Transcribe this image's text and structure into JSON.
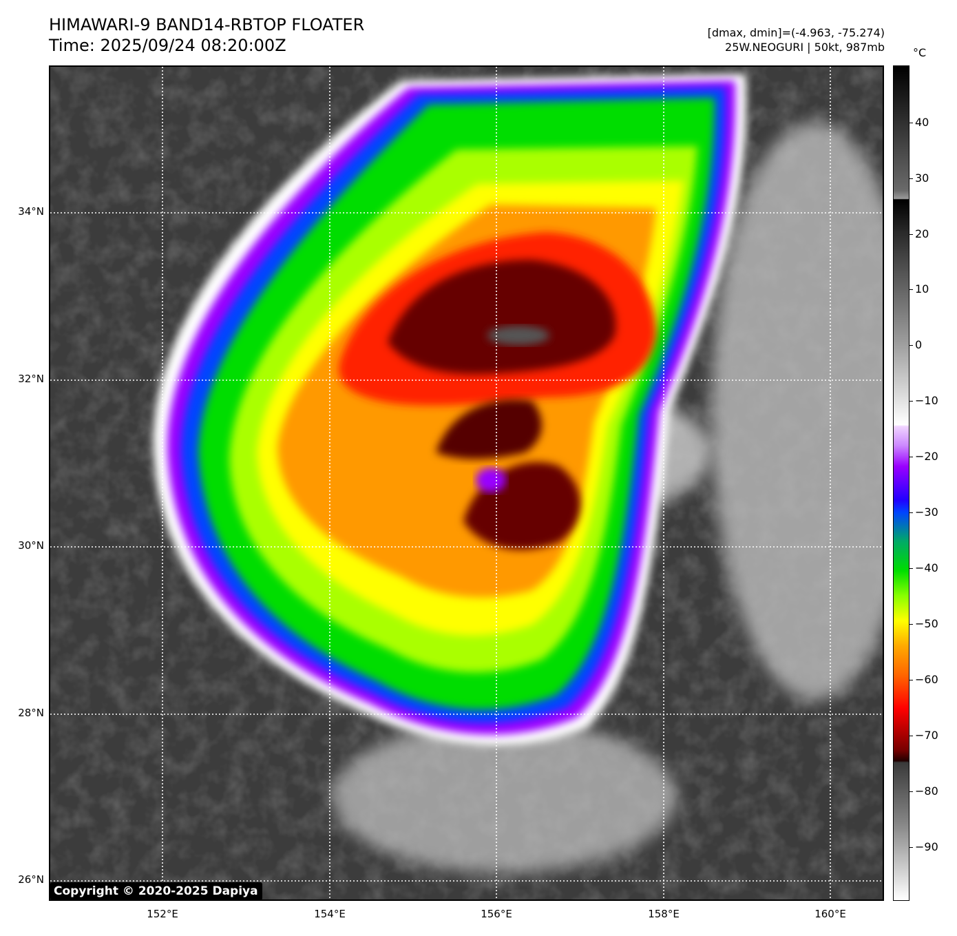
{
  "header": {
    "title_line1": "HIMAWARI-9 BAND14-RBTOP FLOATER",
    "title_line2": "Time: 2025/09/24 08:20:00Z",
    "info_line1": "[dmax, dmin]=(-4.963, -75.274)",
    "info_line2": "25W.NEOGURI | 50kt, 987mb"
  },
  "map": {
    "lat_labels": [
      "34°N",
      "32°N",
      "30°N",
      "28°N",
      "26°N"
    ],
    "lon_labels": [
      "152°E",
      "154°E",
      "156°E",
      "158°E",
      "160°E"
    ],
    "copyright": "Copyright © 2020-2025 Dapiya"
  },
  "colorbar": {
    "unit": "°C",
    "tick_labels": [
      "40",
      "30",
      "20",
      "10",
      "0",
      "−10",
      "−20",
      "−30",
      "−40",
      "−50",
      "−60",
      "−70",
      "−80",
      "−90"
    ],
    "colors": {
      "coldest": "#220000",
      "very_cold": "#770000",
      "red": "#ff0000",
      "orange": "#ff6600",
      "yellow": "#ffff00",
      "green": "#00dd00",
      "blue": "#0044ff",
      "purple": "#9900ff",
      "warm_gray": "#9d9d9d"
    }
  }
}
